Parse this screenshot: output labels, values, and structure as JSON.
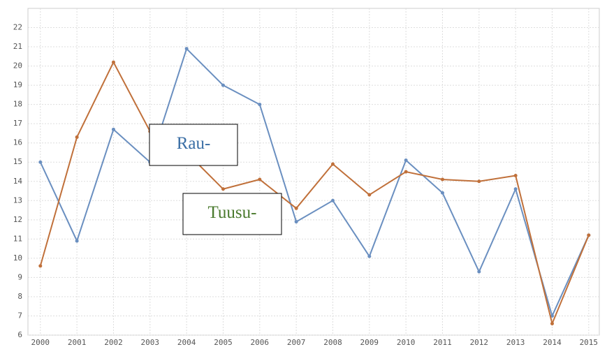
{
  "chart_data": {
    "type": "line",
    "x": [
      2000,
      2001,
      2002,
      2003,
      2004,
      2005,
      2006,
      2007,
      2008,
      2009,
      2010,
      2011,
      2012,
      2013,
      2014,
      2015
    ],
    "series": [
      {
        "color": "#6a8fc0",
        "values": [
          15,
          10.9,
          16.7,
          15,
          20.9,
          19,
          18,
          11.9,
          13,
          10.1,
          15.1,
          13.4,
          9.3,
          13.6,
          7,
          11.2
        ]
      },
      {
        "color": "#c0703a",
        "values": [
          9.6,
          16.3,
          20.2,
          16.6,
          15.5,
          13.6,
          14.1,
          12.6,
          14.9,
          13.3,
          14.5,
          14.1,
          14,
          14.3,
          6.6,
          11.2
        ]
      }
    ],
    "annotations": [
      {
        "text": "Rau-",
        "color": "#3a6ea5"
      },
      {
        "text": "Tuusu-",
        "color": "#4a7a2e"
      }
    ],
    "xlim": [
      1999.66,
      2015.29
    ],
    "xticks": [
      2000,
      2001,
      2002,
      2003,
      2004,
      2005,
      2006,
      2007,
      2008,
      2009,
      2010,
      2011,
      2012,
      2013,
      2014,
      2015
    ],
    "ylim": [
      6,
      23
    ],
    "yticks": [
      6,
      7,
      8,
      9,
      10,
      11,
      12,
      13,
      14,
      15,
      16,
      17,
      18,
      19,
      20,
      21,
      22
    ],
    "grid": true
  }
}
